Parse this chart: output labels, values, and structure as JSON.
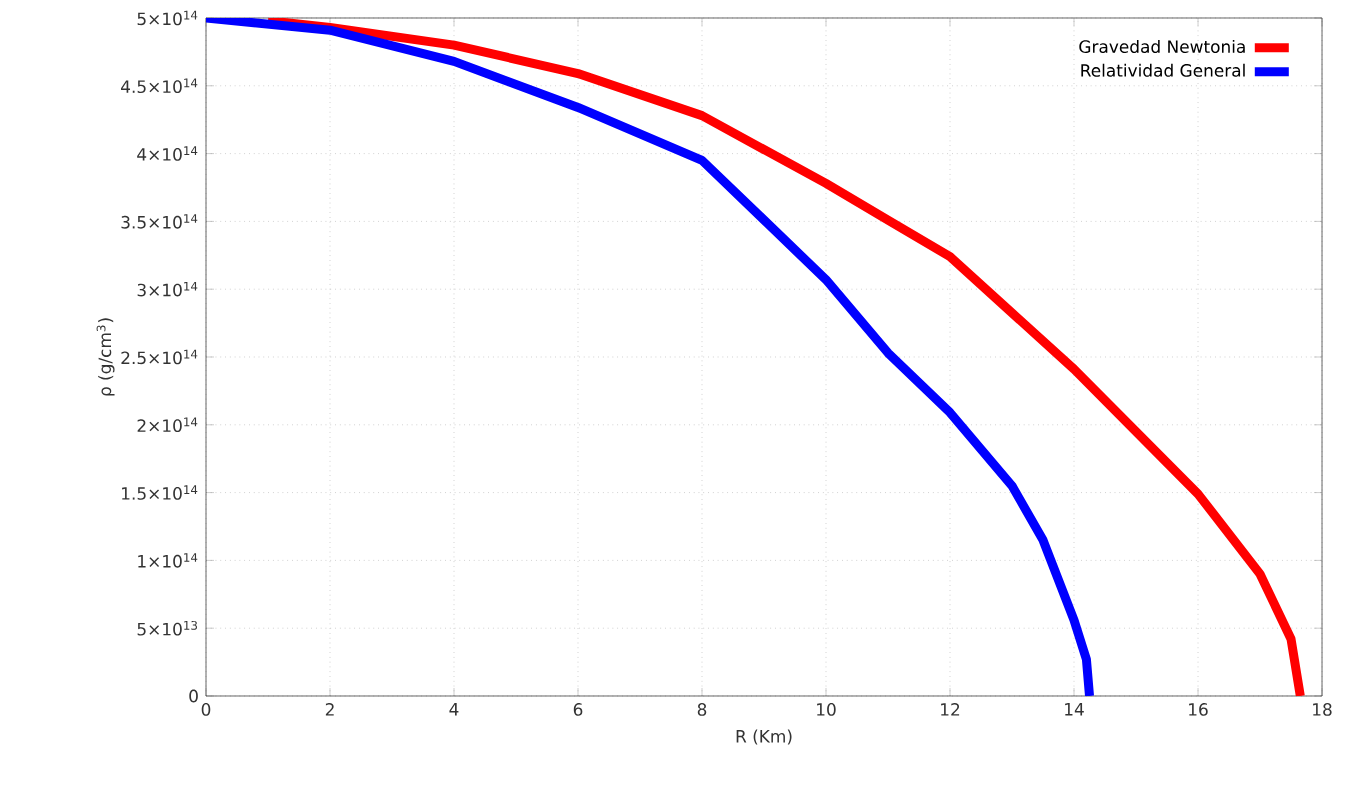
{
  "chart_data": {
    "type": "line",
    "xlabel": "R (Km)",
    "ylabel": "ρ (g/cm$^{3}$)",
    "xlim": [
      0,
      18
    ],
    "ylim": [
      0,
      500000000000000
    ],
    "xticks": [
      0,
      2,
      4,
      6,
      8,
      10,
      12,
      14,
      16,
      18
    ],
    "yticks": [
      0,
      {
        "value": 50000000000000,
        "label": "5×10$^{13}$"
      },
      {
        "value": 100000000000000,
        "label": "1×10$^{14}$"
      },
      {
        "value": 150000000000000,
        "label": "1.5×10$^{14}$"
      },
      {
        "value": 200000000000000,
        "label": "2×10$^{14}$"
      },
      {
        "value": 250000000000000,
        "label": "2.5×10$^{14}$"
      },
      {
        "value": 300000000000000,
        "label": "3×10$^{14}$"
      },
      {
        "value": 350000000000000,
        "label": "3.5×10$^{14}$"
      },
      {
        "value": 400000000000000,
        "label": "4×10$^{14}$"
      },
      {
        "value": 450000000000000,
        "label": "4.5×10$^{14}$"
      },
      {
        "value": 500000000000000,
        "label": "5×10$^{14}$"
      }
    ],
    "grid": true,
    "legend": "top right",
    "series": [
      {
        "name": "Gravedad Newtonia",
        "color": "#ff0000",
        "x": [
          1,
          2,
          4,
          6,
          8,
          10,
          11,
          12,
          14,
          16,
          17,
          17.5,
          17.65
        ],
        "values": [
          498000000000000,
          493000000000000,
          480000000000000,
          459000000000000,
          428000000000000,
          378000000000000,
          351000000000000,
          324000000000000,
          241000000000000,
          149000000000000,
          90000000000000,
          42000000000000,
          0
        ]
      },
      {
        "name": "Relatividad General",
        "color": "#0000ff",
        "x": [
          0,
          2,
          4,
          6,
          8,
          10,
          11,
          12,
          13,
          13.5,
          14,
          14.2,
          14.25
        ],
        "values": [
          500000000000000,
          491000000000000,
          468000000000000,
          434000000000000,
          395000000000000,
          307000000000000,
          253000000000000,
          209000000000000,
          155000000000000,
          115000000000000,
          56000000000000,
          27000000000000,
          0
        ]
      }
    ]
  }
}
